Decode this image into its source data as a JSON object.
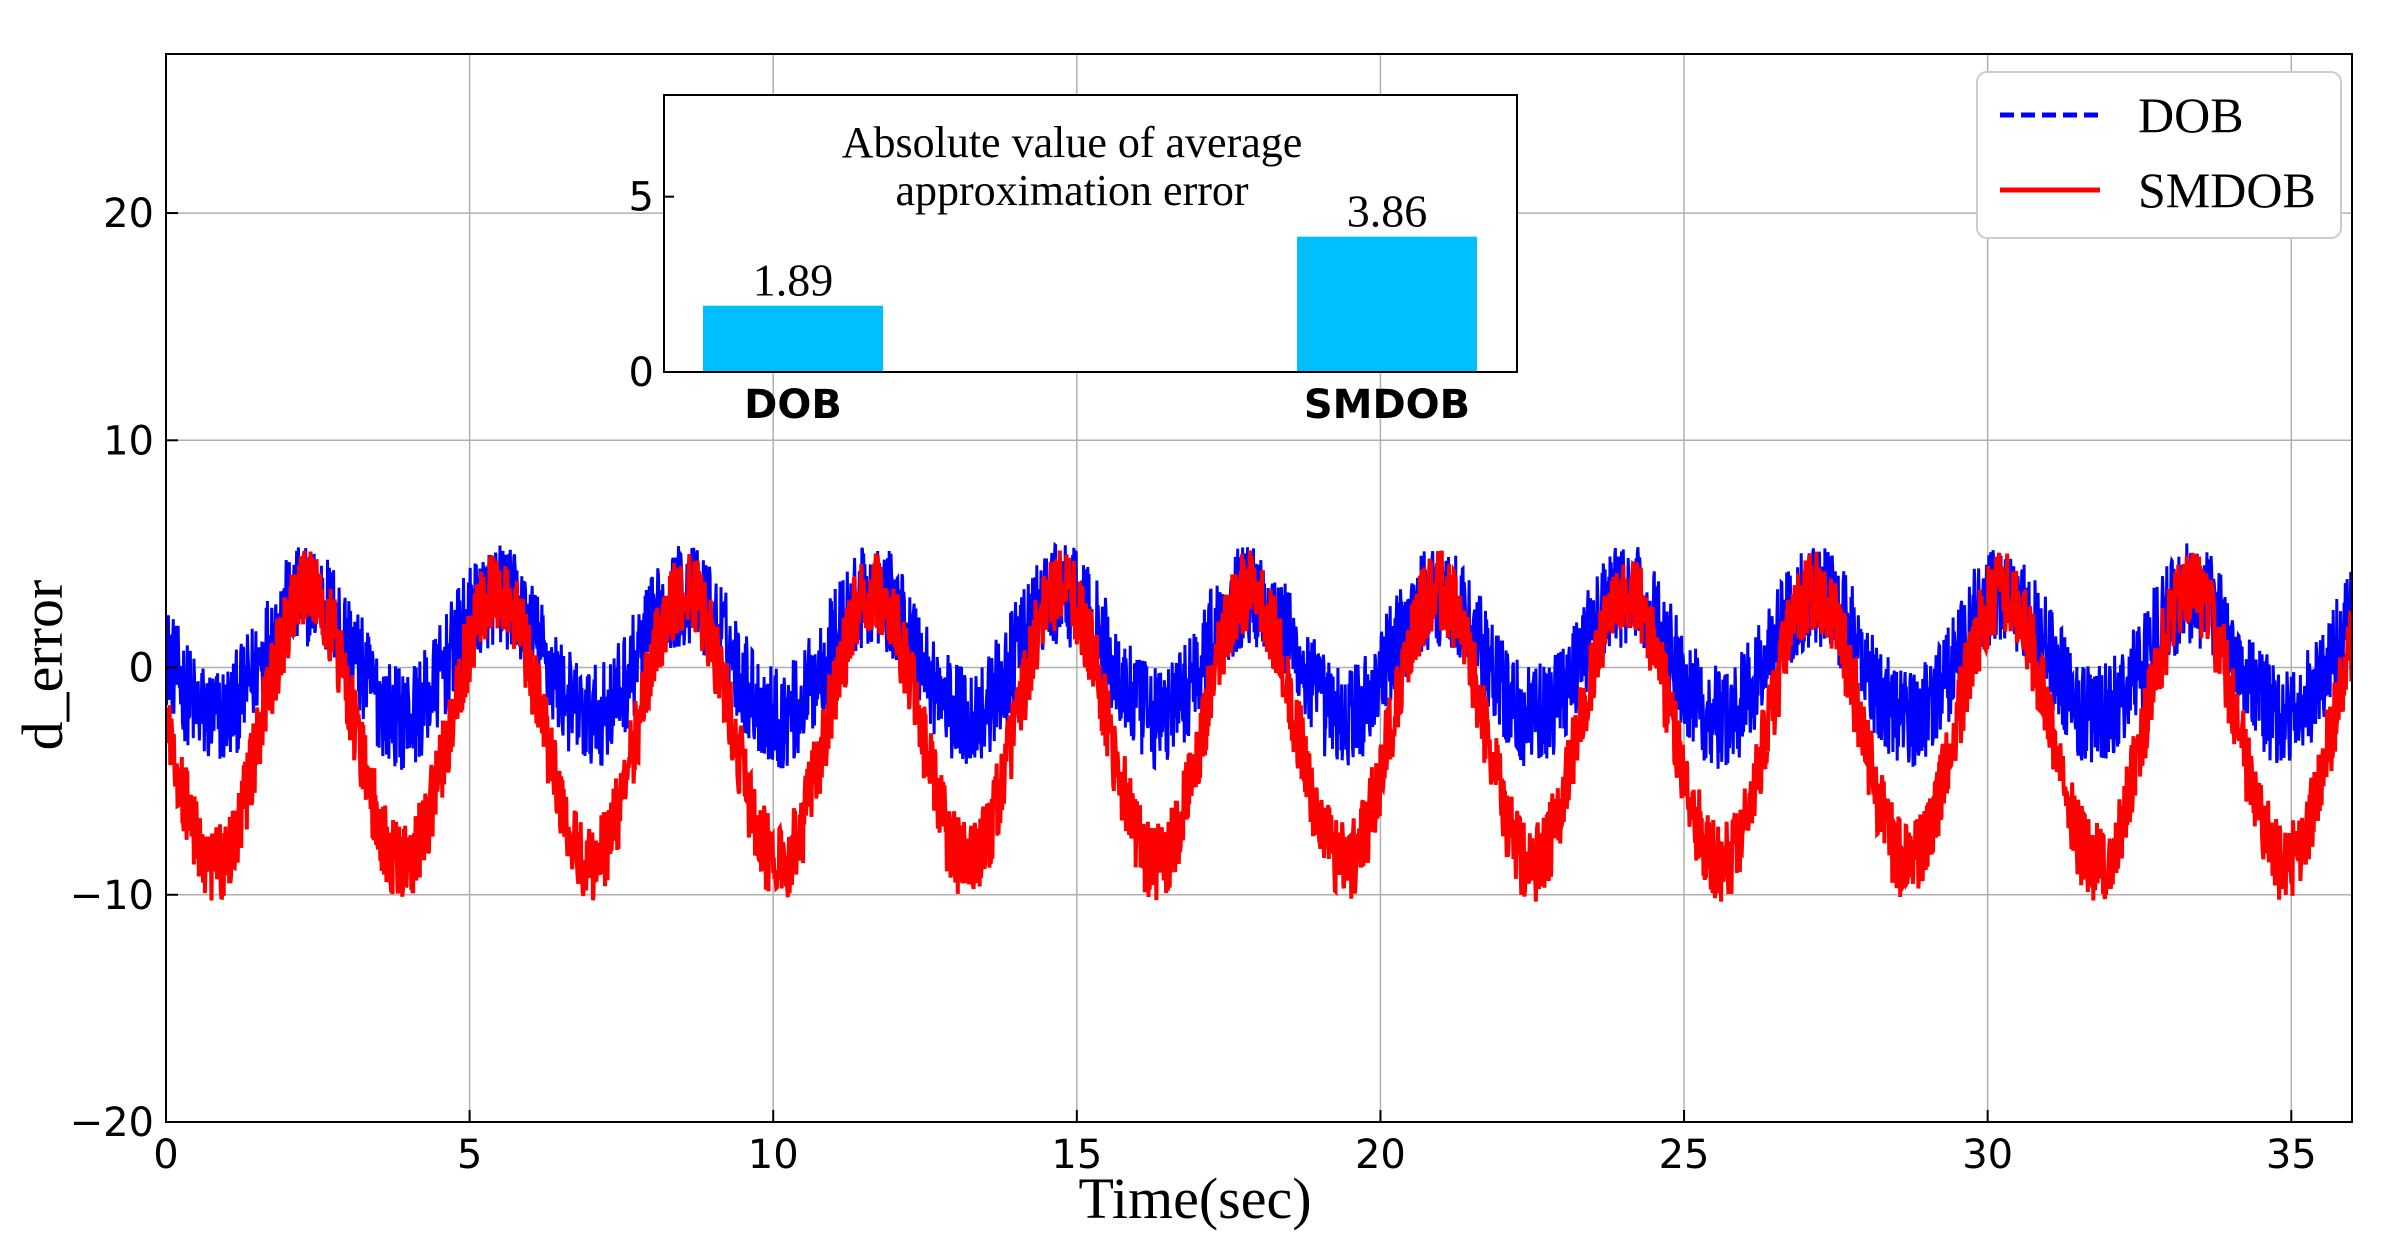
{
  "chart_data": [
    {
      "type": "line",
      "xlabel": "Time(sec)",
      "ylabel": "d_error",
      "xlim": [
        0,
        36
      ],
      "ylim": [
        -20,
        27
      ],
      "xticks": [
        0,
        5,
        10,
        15,
        20,
        25,
        30,
        35
      ],
      "yticks": [
        -20,
        -10,
        0,
        10,
        20
      ],
      "xtick_labels": [
        "0",
        "5",
        "10",
        "15",
        "20",
        "25",
        "30",
        "35"
      ],
      "ytick_labels": [
        "−20",
        "−10",
        "0",
        "10",
        "20"
      ],
      "grid": true,
      "legend_position": "top-right",
      "series": [
        {
          "name": "DOB",
          "color": "#0000ff",
          "style": "dashed",
          "model": "sinusoid-with-noise",
          "period": 3.1,
          "peak_time": 2.35,
          "mean": 0.5,
          "amplitude": 2.7,
          "noise_amplitude": 2.3,
          "approx_range": [
            -4.5,
            7.5
          ]
        },
        {
          "name": "SMDOB",
          "color": "#ff0000",
          "style": "solid",
          "model": "sinusoid-with-noise",
          "period": 3.1,
          "peak_time": 2.35,
          "mean": -2.6,
          "amplitude": 6.0,
          "noise_amplitude": 1.8,
          "approx_range": [
            -10.3,
            5.3
          ]
        }
      ]
    },
    {
      "type": "bar",
      "title": [
        "Absolute value of average",
        "approximation error"
      ],
      "categories": [
        "DOB",
        "SMDOB"
      ],
      "values": [
        1.89,
        3.86
      ],
      "value_labels": [
        "1.89",
        "3.86"
      ],
      "ylim": [
        0,
        7.9
      ],
      "yticks": [
        0,
        5
      ],
      "ytick_labels": [
        "0",
        "5"
      ],
      "bar_color": "#00bfff"
    }
  ]
}
